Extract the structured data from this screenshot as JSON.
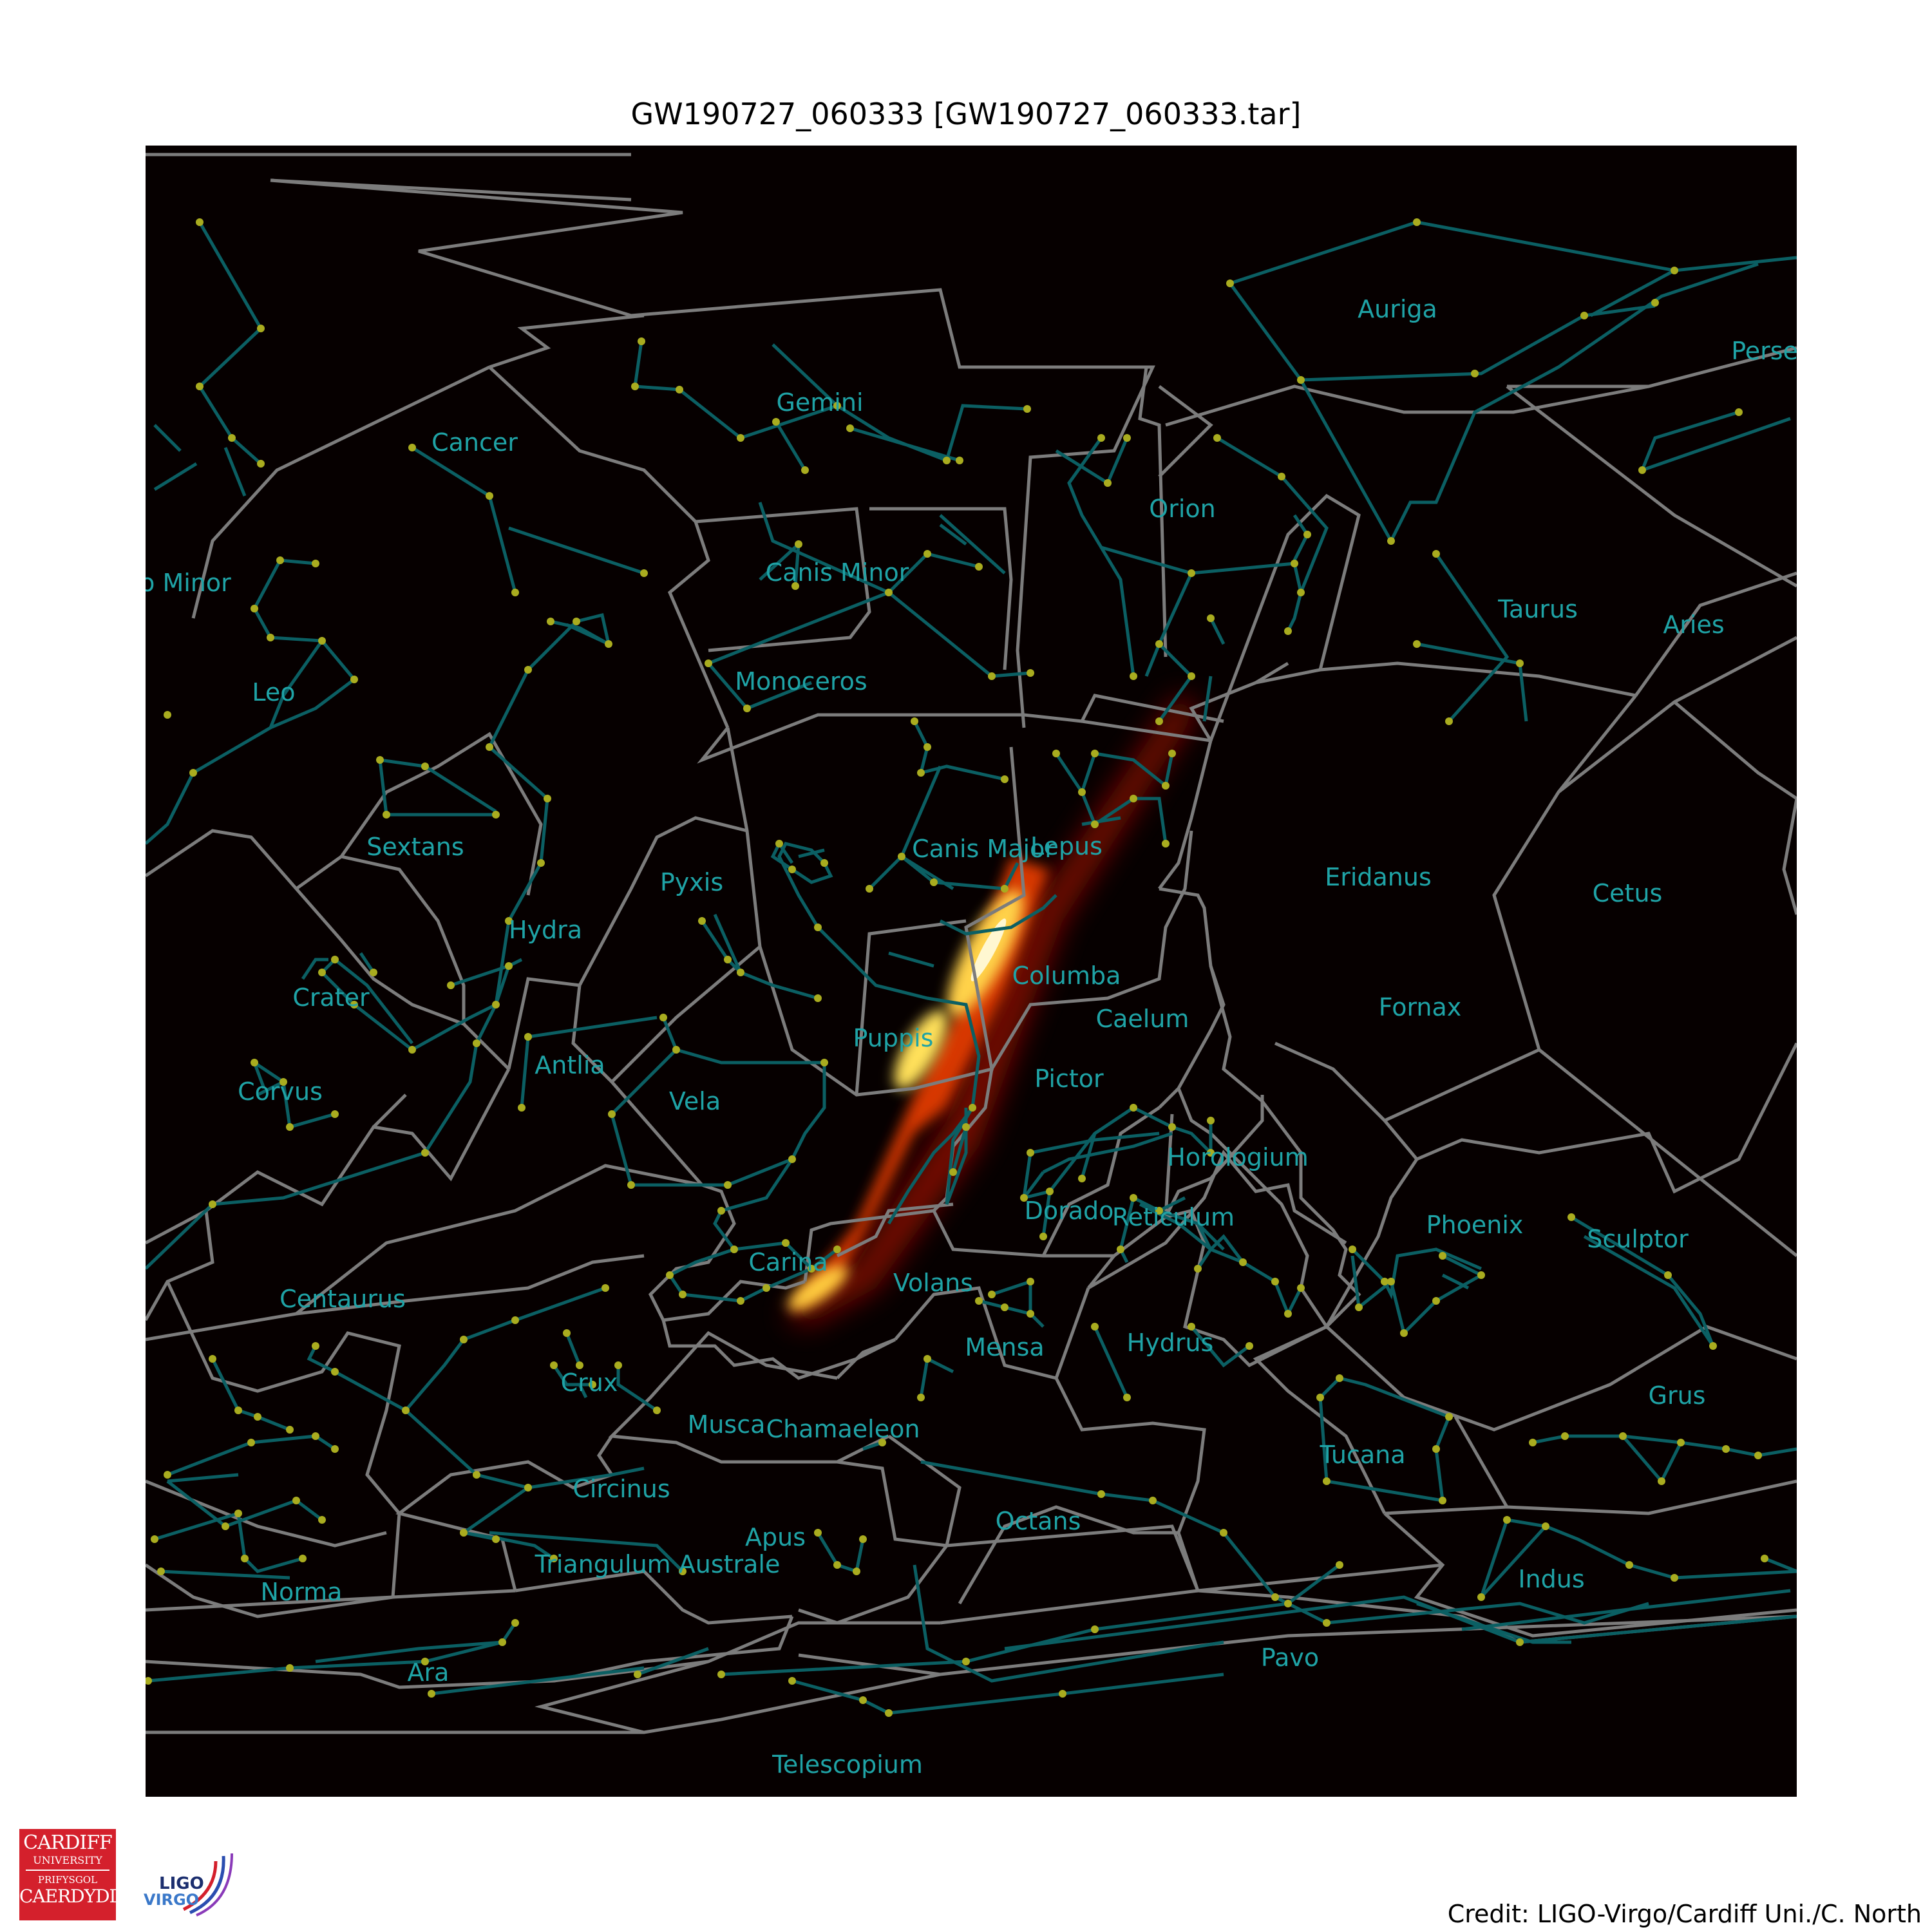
{
  "header": {
    "title": "GW190727_060333 [GW190727_060333.tar]"
  },
  "footer": {
    "credit": "Credit: LIGO-Virgo/Cardiff Uni./C. North"
  },
  "logos": {
    "cardiff": {
      "line1": "CARDIFF",
      "line2": "UNIVERSITY",
      "line3": "PRIFYSGOL",
      "line4": "CAERDYDD"
    },
    "ligo": {
      "line1": "LIGO",
      "line2": "VIRGO"
    }
  },
  "colors": {
    "background": "#060000",
    "boundary": "#7c7c7c",
    "stickfigure": "#0b5f63",
    "star": "#a9ac1f",
    "label": "#1fa3a6"
  },
  "constellations": [
    {
      "name": "Auriga"
    },
    {
      "name": "Perseus"
    },
    {
      "name": "Gemini"
    },
    {
      "name": "Cancer"
    },
    {
      "name": "Orion"
    },
    {
      "name": "Leo Minor"
    },
    {
      "name": "Canis Minor"
    },
    {
      "name": "Taurus"
    },
    {
      "name": "Aries"
    },
    {
      "name": "Leo"
    },
    {
      "name": "Monoceros"
    },
    {
      "name": "Sextans"
    },
    {
      "name": "Canis Major"
    },
    {
      "name": "Lepus"
    },
    {
      "name": "Pyxis"
    },
    {
      "name": "Eridanus"
    },
    {
      "name": "Cetus"
    },
    {
      "name": "Hydra"
    },
    {
      "name": "Columba"
    },
    {
      "name": "Crater"
    },
    {
      "name": "Fornax"
    },
    {
      "name": "Caelum"
    },
    {
      "name": "Puppis"
    },
    {
      "name": "Antlia"
    },
    {
      "name": "Pictor"
    },
    {
      "name": "Corvus"
    },
    {
      "name": "Vela"
    },
    {
      "name": "Horologium"
    },
    {
      "name": "Dorado"
    },
    {
      "name": "Reticulum"
    },
    {
      "name": "Phoenix"
    },
    {
      "name": "Sculptor"
    },
    {
      "name": "Carina"
    },
    {
      "name": "Volans"
    },
    {
      "name": "Centaurus"
    },
    {
      "name": "Mensa"
    },
    {
      "name": "Hydrus"
    },
    {
      "name": "Crux"
    },
    {
      "name": "Grus"
    },
    {
      "name": "Musca"
    },
    {
      "name": "Chamaeleon"
    },
    {
      "name": "Tucana"
    },
    {
      "name": "Circinus"
    },
    {
      "name": "Octans"
    },
    {
      "name": "Apus"
    },
    {
      "name": "Triangulum Australe"
    },
    {
      "name": "Indus"
    },
    {
      "name": "Norma"
    },
    {
      "name": "Pavo"
    },
    {
      "name": "Ara"
    },
    {
      "name": "Telescopium"
    }
  ]
}
